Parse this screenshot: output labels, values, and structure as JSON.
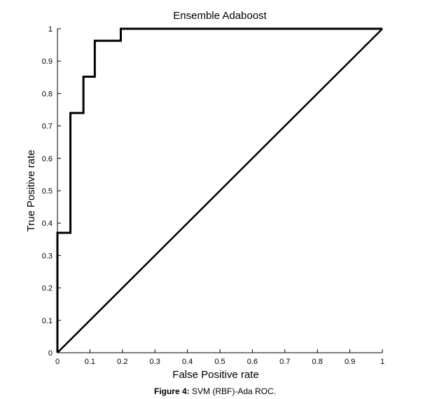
{
  "chart_data": {
    "type": "line",
    "title": "Ensemble Adaboost",
    "xlabel": "False Positive rate",
    "ylabel": "True Positive rate",
    "xlim": [
      0,
      1
    ],
    "ylim": [
      0,
      1
    ],
    "xticks": [
      "0",
      "0.1",
      "0.2",
      "0.3",
      "0.4",
      "0.5",
      "0.6",
      "0.7",
      "0.8",
      "0.9",
      "1"
    ],
    "yticks": [
      "0",
      "0.1",
      "0.2",
      "0.3",
      "0.4",
      "0.5",
      "0.6",
      "0.7",
      "0.8",
      "0.9",
      "1"
    ],
    "grid": false,
    "series": [
      {
        "x": [
          0,
          0,
          0.04,
          0.04,
          0.08,
          0.08,
          0.115,
          0.115,
          0.195,
          0.195,
          1
        ],
        "y": [
          0,
          0.37,
          0.37,
          0.74,
          0.74,
          0.852,
          0.852,
          0.963,
          0.963,
          1,
          1
        ]
      },
      {
        "x": [
          0,
          1
        ],
        "y": [
          0,
          1
        ]
      }
    ]
  },
  "caption": {
    "label": "Figure 4:",
    "text": " SVM (RBF)-Ada ROC."
  }
}
